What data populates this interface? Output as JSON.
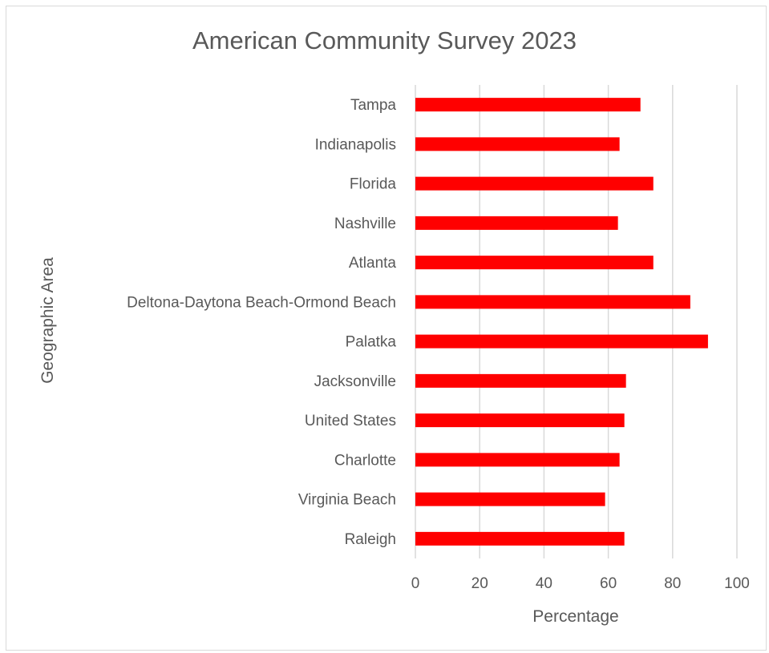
{
  "chart_data": {
    "type": "bar",
    "orientation": "horizontal",
    "title": "American Community Survey 2023",
    "xlabel": "Percentage",
    "ylabel": "Geographic Area",
    "xlim": [
      0,
      100
    ],
    "xticks": [
      0,
      20,
      40,
      60,
      80,
      100
    ],
    "grid": "vertical",
    "legend": "none",
    "bar_color": "#ff0000",
    "categories": [
      "Tampa",
      "Indianapolis",
      "Florida",
      "Nashville",
      "Atlanta",
      "Deltona-Daytona Beach-Ormond Beach",
      "Palatka",
      "Jacksonville",
      "United States",
      "Charlotte",
      "Virginia Beach",
      "Raleigh"
    ],
    "values": [
      70,
      63.5,
      74,
      63,
      74,
      85.5,
      91,
      65.5,
      65,
      63.5,
      59,
      65
    ]
  }
}
